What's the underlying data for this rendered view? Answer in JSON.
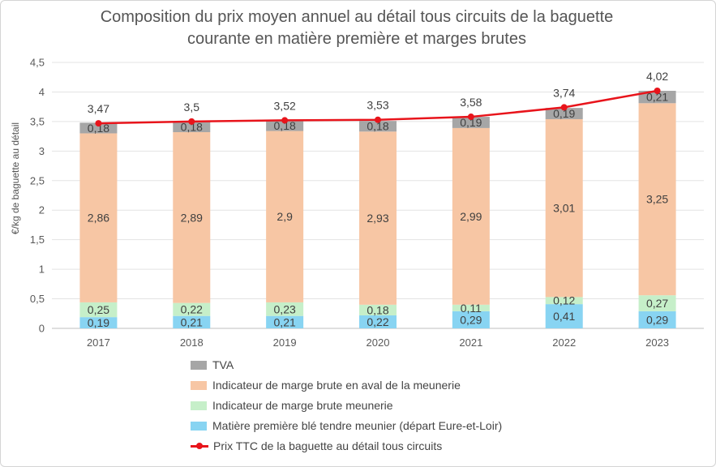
{
  "chart_data": {
    "type": "bar",
    "stacked": true,
    "title": "Composition du prix moyen annuel au détail tous circuits de la baguette courante en matière première et marges brutes",
    "title_lines": [
      "Composition du prix moyen annuel au détail tous circuits de la baguette",
      "courante en matière première et marges brutes"
    ],
    "xlabel": "",
    "ylabel": "€/kg de baguette au détail",
    "ylim": [
      0,
      4.5
    ],
    "yticks": [
      "0",
      "0,5",
      "1",
      "1,5",
      "2",
      "2,5",
      "3",
      "3,5",
      "4",
      "4,5"
    ],
    "grid": true,
    "legend_position": "bottom",
    "categories": [
      "2017",
      "2018",
      "2019",
      "2020",
      "2021",
      "2022",
      "2023"
    ],
    "series": [
      {
        "name": "Matière première blé tendre meunier (départ Eure-et-Loir)",
        "color": "#88d4f2",
        "values": [
          0.19,
          0.21,
          0.21,
          0.22,
          0.29,
          0.41,
          0.29
        ],
        "labels": [
          "0,19",
          "0,21",
          "0,21",
          "0,22",
          "0,29",
          "0,41",
          "0,29"
        ]
      },
      {
        "name": "Indicateur de marge brute meunerie",
        "color": "#c6efc9",
        "values": [
          0.25,
          0.22,
          0.23,
          0.18,
          0.11,
          0.12,
          0.27
        ],
        "labels": [
          "0,25",
          "0,22",
          "0,23",
          "0,18",
          "0,11",
          "0,12",
          "0,27"
        ]
      },
      {
        "name": "Indicateur de marge brute en aval de la  meunerie",
        "color": "#f7c6a4",
        "values": [
          2.86,
          2.89,
          2.9,
          2.93,
          2.99,
          3.01,
          3.25
        ],
        "labels": [
          "2,86",
          "2,89",
          "2,9",
          "2,93",
          "2,99",
          "3,01",
          "3,25"
        ]
      },
      {
        "name": "TVA",
        "color": "#a6a6a6",
        "values": [
          0.18,
          0.18,
          0.18,
          0.18,
          0.19,
          0.19,
          0.21
        ],
        "labels": [
          "0,18",
          "0,18",
          "0,18",
          "0,18",
          "0,19",
          "0,19",
          "0,21"
        ]
      }
    ],
    "line_series": {
      "name": "Prix TTC de la baguette au détail tous circuits",
      "color": "#e8141b",
      "values": [
        3.47,
        3.5,
        3.52,
        3.53,
        3.58,
        3.74,
        4.02
      ],
      "labels": [
        "3,47",
        "3,5",
        "3,52",
        "3,53",
        "3,58",
        "3,74",
        "4,02"
      ]
    },
    "legend_order": [
      "TVA",
      "Indicateur de marge brute en aval de la  meunerie",
      "Indicateur de marge brute meunerie",
      "Matière première blé tendre meunier (départ Eure-et-Loir)",
      "Prix TTC de la baguette au détail tous circuits"
    ]
  }
}
